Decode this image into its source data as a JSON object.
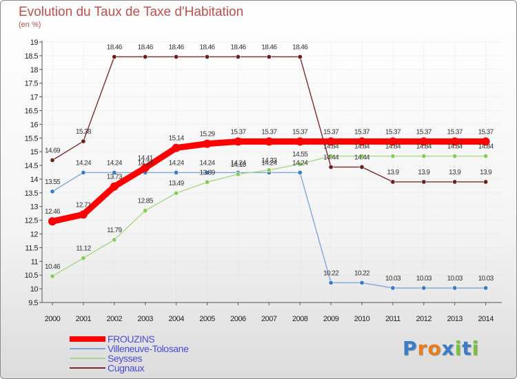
{
  "chart_data": {
    "type": "line",
    "title": "Evolution du Taux de Taxe d'Habitation",
    "unit_label": "(en %)",
    "x": [
      "2000",
      "2001",
      "2002",
      "2003",
      "2004",
      "2005",
      "2006",
      "2007",
      "2008",
      "2009",
      "2010",
      "2011",
      "2012",
      "2013",
      "2014"
    ],
    "ylim": [
      9.5,
      19
    ],
    "yticks": [
      9.5,
      10,
      10.5,
      11,
      11.5,
      12,
      12.5,
      13,
      13.5,
      14,
      14.5,
      15,
      15.5,
      16,
      16.5,
      17,
      17.5,
      18,
      18.5,
      19
    ],
    "ytick_labels": [
      "9.5",
      "10",
      "10.5",
      "11",
      "11.5",
      "12",
      "12.5",
      "13",
      "13.5",
      "14",
      "14.5",
      "15",
      "15.5",
      "16",
      "16.5",
      "17",
      "17.5",
      "18",
      "18.5",
      "19"
    ],
    "legend_position": "bottom-left",
    "series": [
      {
        "name": "Cugnaux",
        "color": "#7a2a2a",
        "marker": "#6b2020",
        "values": [
          14.69,
          15.38,
          18.46,
          18.46,
          18.46,
          18.46,
          18.46,
          18.46,
          18.46,
          14.44,
          14.44,
          13.9,
          13.9,
          13.9,
          13.9
        ],
        "labels": [
          "14.69",
          "15.38",
          "18.46",
          "18.46",
          "18.46",
          "18.46",
          "18.46",
          "18.46",
          "18.46",
          "14.44",
          "14.44",
          "13.9",
          "13.9",
          "13.9",
          "13.9"
        ]
      },
      {
        "name": "Villeneuve-Tolosane",
        "color": "#7fa7d6",
        "marker": "#3a7cc7",
        "values": [
          13.55,
          14.24,
          14.24,
          14.24,
          14.24,
          14.24,
          14.24,
          14.24,
          14.24,
          10.22,
          10.22,
          10.03,
          10.03,
          10.03,
          10.03
        ],
        "labels": [
          "13.55",
          "14.24",
          "14.24",
          "14.24",
          "14.24",
          "14.24",
          "14.24",
          "14.24",
          "14.24",
          "10.22",
          "10.22",
          "10.03",
          "10.03",
          "10.03",
          "10.03"
        ]
      },
      {
        "name": "Seysses",
        "color": "#a8d888",
        "marker": "#88cc55",
        "values": [
          10.46,
          11.12,
          11.79,
          12.85,
          13.49,
          13.89,
          14.18,
          14.33,
          14.55,
          14.84,
          14.84,
          14.84,
          14.84,
          14.84,
          14.84
        ],
        "labels": [
          "10.46",
          "11.12",
          "11.79",
          "12.85",
          "13.49",
          "13.89",
          "14.18",
          "14.33",
          "14.55",
          "14.84",
          "14.84",
          "14.84",
          "14.84",
          "14.84",
          "14.84"
        ]
      },
      {
        "name": "FROUZINS",
        "color": "#ff0000",
        "marker": "#ff0000",
        "values": [
          12.46,
          12.71,
          13.73,
          14.41,
          15.14,
          15.29,
          15.37,
          15.37,
          15.37,
          15.37,
          15.37,
          15.37,
          15.37,
          15.37,
          15.37
        ],
        "labels": [
          "12.46",
          "12.71",
          "13.73",
          "14.41",
          "15.14",
          "15.29",
          "15.37",
          "15.37",
          "15.37",
          "15.37",
          "15.37",
          "15.37",
          "15.37",
          "15.37",
          "15.37"
        ]
      }
    ]
  },
  "legend": [
    {
      "name": "FROUZINS",
      "color": "#ff0000"
    },
    {
      "name": "Villeneuve-Tolosane",
      "color": "#7fa7d6"
    },
    {
      "name": "Seysses",
      "color": "#a8d888"
    },
    {
      "name": "Cugnaux",
      "color": "#7a2a2a"
    }
  ],
  "logo": {
    "text": "Proxiti",
    "letters": [
      "P",
      "r",
      "o",
      "x",
      "i",
      "t",
      "i"
    ],
    "colors": [
      "#3a7cc7",
      "#e87d1e",
      "#e87d1e",
      "#3a7cc7",
      "#7ac142",
      "#3a7cc7",
      "#7ac142"
    ]
  }
}
